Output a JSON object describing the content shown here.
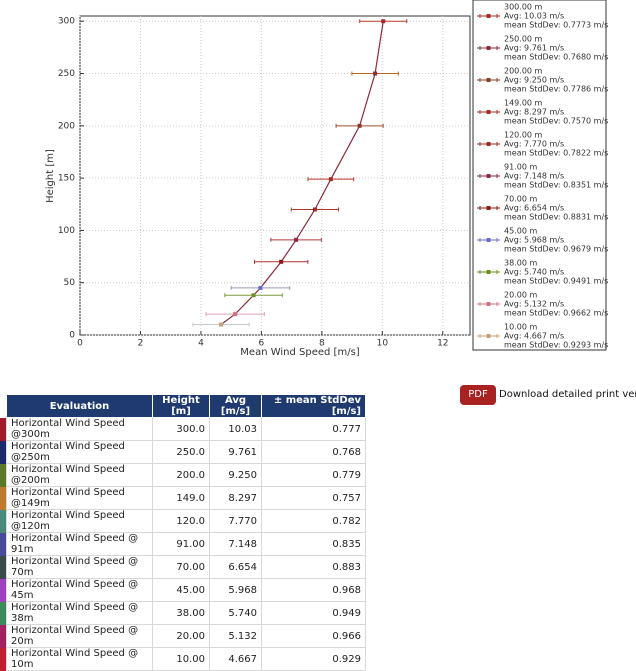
{
  "chart_data": {
    "type": "line",
    "xlabel": "Mean Wind Speed [m/s]",
    "ylabel": "Height [m]",
    "xlim": [
      0,
      12.9
    ],
    "ylim": [
      0,
      305
    ],
    "xticks": [
      0,
      2,
      4,
      6,
      8,
      10,
      12
    ],
    "yticks": [
      0,
      50,
      100,
      150,
      200,
      250,
      300
    ],
    "grid": true,
    "line_color": "#8b2a3a",
    "series": [
      {
        "name": "300.00 m",
        "avg_label": "Avg: 10.03 m/s",
        "std_label": "mean StdDev: 0.7773 m/s",
        "color": "#a52a2a",
        "error_color": "#c0392b",
        "x": [
          10.03
        ],
        "values": [
          300
        ],
        "errors": [
          0.7773
        ]
      },
      {
        "name": "250.00 m",
        "avg_label": "Avg: 9.761 m/s",
        "std_label": "mean StdDev: 0.7680 m/s",
        "color": "#8b2a3a",
        "error_color": "#b5651d",
        "x": [
          9.761
        ],
        "values": [
          250
        ],
        "errors": [
          0.768
        ]
      },
      {
        "name": "200.00 m",
        "avg_label": "Avg: 9.250 m/s",
        "std_label": "mean StdDev: 0.7786 m/s",
        "color": "#8b3a2a",
        "error_color": "#a0522d",
        "x": [
          9.25
        ],
        "values": [
          200
        ],
        "errors": [
          0.7786
        ]
      },
      {
        "name": "149.00 m",
        "avg_label": "Avg: 8.297 m/s",
        "std_label": "mean StdDev: 0.7570 m/s",
        "color": "#a52a2a",
        "error_color": "#c0392b",
        "x": [
          8.297
        ],
        "values": [
          149
        ],
        "errors": [
          0.757
        ]
      },
      {
        "name": "120.00 m",
        "avg_label": "Avg: 7.770 m/s",
        "std_label": "mean StdDev: 0.7822 m/s",
        "color": "#9b2a2a",
        "error_color": "#b03a2e",
        "x": [
          7.77
        ],
        "values": [
          120
        ],
        "errors": [
          0.7822
        ]
      },
      {
        "name": "91.00 m",
        "avg_label": "Avg: 7.148 m/s",
        "std_label": "mean StdDev: 0.8351 m/s",
        "color": "#8b2a4a",
        "error_color": "#b03a3a",
        "x": [
          7.148
        ],
        "values": [
          91
        ],
        "errors": [
          0.8351
        ]
      },
      {
        "name": "70.00 m",
        "avg_label": "Avg: 6.654 m/s",
        "std_label": "mean StdDev: 0.8831 m/s",
        "color": "#8b1a1a",
        "error_color": "#b03030",
        "x": [
          6.654
        ],
        "values": [
          70
        ],
        "errors": [
          0.8831
        ]
      },
      {
        "name": "45.00 m",
        "avg_label": "Avg: 5.968 m/s",
        "std_label": "mean StdDev: 0.9679 m/s",
        "color": "#6a6ad0",
        "error_color": "#9a9ab0",
        "x": [
          5.968
        ],
        "values": [
          45
        ],
        "errors": [
          0.9679
        ]
      },
      {
        "name": "38.00 m",
        "avg_label": "Avg: 5.740 m/s",
        "std_label": "mean StdDev: 0.9491 m/s",
        "color": "#6b8e23",
        "error_color": "#7a9a3a",
        "x": [
          5.74
        ],
        "values": [
          38
        ],
        "errors": [
          0.9491
        ]
      },
      {
        "name": "20.00 m",
        "avg_label": "Avg: 5.132 m/s",
        "std_label": "mean StdDev: 0.9662 m/s",
        "color": "#d07080",
        "error_color": "#e0a0b0",
        "x": [
          5.132
        ],
        "values": [
          20
        ],
        "errors": [
          0.9662
        ]
      },
      {
        "name": "10.00 m",
        "avg_label": "Avg: 4.667 m/s",
        "std_label": "mean StdDev: 0.9293 m/s",
        "color": "#c8a078",
        "error_color": "#c8c8c8",
        "x": [
          4.667
        ],
        "values": [
          10
        ],
        "errors": [
          0.9293
        ]
      }
    ]
  },
  "download": {
    "button": "PDF",
    "label": "Download detailed print version"
  },
  "table": {
    "header": [
      "Evaluation",
      "Height [m]",
      "Avg [m/s]",
      "± mean StdDev [m/s]"
    ],
    "rows": [
      {
        "color": "#a01c2c",
        "cells": [
          "Horizontal Wind Speed @300m",
          "300.0",
          "10.03",
          "0.777"
        ]
      },
      {
        "color": "#1a2a6a",
        "cells": [
          "Horizontal Wind Speed @250m",
          "250.0",
          "9.761",
          "0.768"
        ]
      },
      {
        "color": "#5a7a2a",
        "cells": [
          "Horizontal Wind Speed @200m",
          "200.0",
          "9.250",
          "0.779"
        ]
      },
      {
        "color": "#c07a30",
        "cells": [
          "Horizontal Wind Speed @149m",
          "149.0",
          "8.297",
          "0.757"
        ]
      },
      {
        "color": "#4a8a7a",
        "cells": [
          "Horizontal Wind Speed @120m",
          "120.0",
          "7.770",
          "0.782"
        ]
      },
      {
        "color": "#4a4a9a",
        "cells": [
          "Horizontal Wind Speed @ 91m",
          "91.00",
          "7.148",
          "0.835"
        ]
      },
      {
        "color": "#3a4a4a",
        "cells": [
          "Horizontal Wind Speed @ 70m",
          "70.00",
          "6.654",
          "0.883"
        ]
      },
      {
        "color": "#a040c0",
        "cells": [
          "Horizontal Wind Speed @ 45m",
          "45.00",
          "5.968",
          "0.968"
        ]
      },
      {
        "color": "#3a8a5a",
        "cells": [
          "Horizontal Wind Speed @ 38m",
          "38.00",
          "5.740",
          "0.949"
        ]
      },
      {
        "color": "#a02060",
        "cells": [
          "Horizontal Wind Speed @ 20m",
          "20.00",
          "5.132",
          "0.966"
        ]
      },
      {
        "color": "#c02030",
        "cells": [
          "Horizontal Wind Speed @ 10m",
          "10.00",
          "4.667",
          "0.929"
        ]
      }
    ]
  }
}
